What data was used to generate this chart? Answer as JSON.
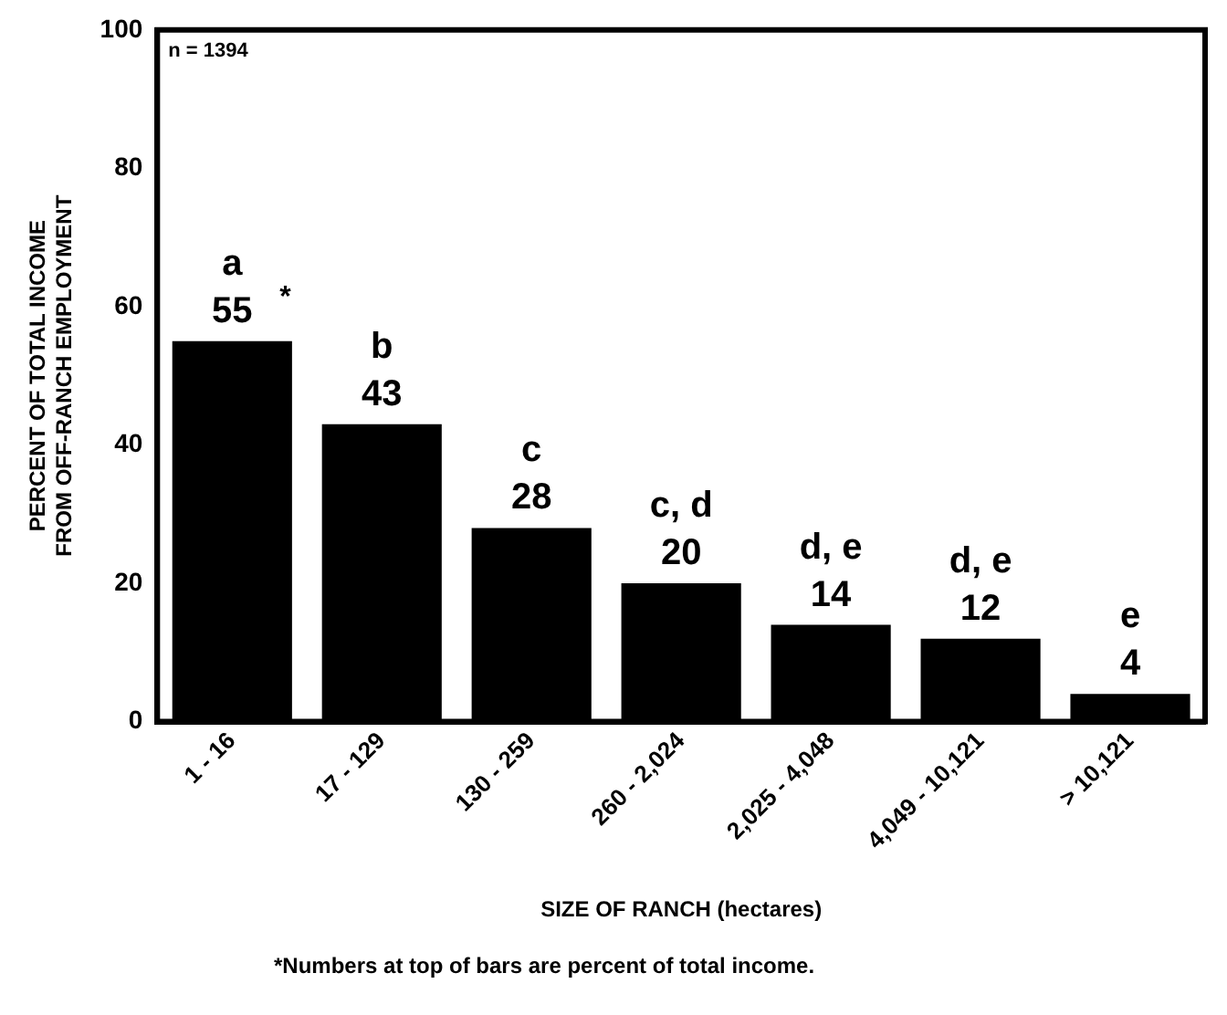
{
  "chart_data": {
    "type": "bar",
    "xlabel": "SIZE OF RANCH (hectares)",
    "ylabel": "PERCENT OF TOTAL INCOME\nFROM OFF-RANCH EMPLOYMENT",
    "categories": [
      "1 - 16",
      "17 - 129",
      "130 - 259",
      "260 - 2,024",
      "2,025 - 4,048",
      "4,049 - 10,121",
      "> 10,121"
    ],
    "values": [
      55,
      43,
      28,
      20,
      14,
      12,
      4
    ],
    "color": "#000000",
    "data_labels": true,
    "ylim": [
      0,
      100
    ],
    "yticks": [
      0,
      20,
      40,
      60,
      80,
      100
    ],
    "grid": false,
    "legend": false,
    "annotations": [
      "n = 1394",
      {
        "text": "a",
        "x": "1 - 16",
        "y": 55
      },
      {
        "text": "b",
        "x": "17 - 129",
        "y": 43
      },
      {
        "text": "c",
        "x": "130 - 259",
        "y": 28
      },
      {
        "text": "c, d",
        "x": "260 - 2,024",
        "y": 20
      },
      {
        "text": "d, e",
        "x": "2,025 - 4,048",
        "y": 14
      },
      {
        "text": "d, e",
        "x": "4,049 - 10,121",
        "y": 12
      },
      {
        "text": "e",
        "x": "> 10,121",
        "y": 4
      },
      {
        "text": "*",
        "x": "1 - 16",
        "y": 55
      },
      "*Numbers at top of bars are percent of total income."
    ]
  }
}
